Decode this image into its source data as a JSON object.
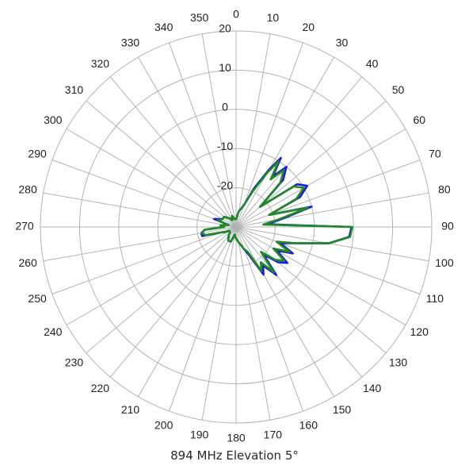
{
  "chart_data": {
    "type": "polar-line",
    "title": "894 MHz Elevation 5°",
    "angle_direction": "clockwise",
    "angle_zero": "top",
    "angle_ticks": [
      0,
      10,
      20,
      30,
      40,
      50,
      60,
      70,
      80,
      90,
      100,
      110,
      120,
      130,
      140,
      150,
      160,
      170,
      180,
      190,
      200,
      210,
      220,
      230,
      240,
      250,
      260,
      270,
      280,
      290,
      300,
      310,
      320,
      330,
      340,
      350
    ],
    "radial_range": [
      -30,
      20
    ],
    "radial_ticks": [
      20,
      10,
      0,
      -10,
      -20
    ],
    "radial_label_angle": 0,
    "grid": true,
    "series": [
      {
        "color": "#1a1ae6",
        "angles": [
          0,
          10,
          20,
          25,
          30,
          33,
          36,
          40,
          45,
          50,
          55,
          60,
          65,
          70,
          75,
          80,
          85,
          90,
          95,
          100,
          105,
          110,
          115,
          120,
          125,
          130,
          135,
          140,
          145,
          150,
          155,
          160,
          170,
          180,
          190,
          200,
          210,
          220,
          230,
          240,
          245,
          250,
          255,
          260,
          265,
          270,
          275,
          280,
          285,
          290,
          300,
          310,
          320,
          330,
          340,
          350
        ],
        "values": [
          -28,
          -26,
          -24,
          -19,
          -13,
          -9,
          -14,
          -10,
          -13,
          -22,
          -11,
          -9,
          -12,
          -21,
          -10,
          -18,
          -22,
          -0.5,
          -1,
          -6,
          -14,
          -18,
          -14,
          -18,
          -14,
          -16,
          -20,
          -14,
          -18,
          -16,
          -22,
          -24,
          -26,
          -27,
          -28,
          -26,
          -26,
          -27,
          -28,
          -28,
          -27,
          -26,
          -21,
          -21,
          -22,
          -27,
          -26,
          -27,
          -28,
          -24,
          -26,
          -26,
          -27,
          -28,
          -27,
          -28
        ]
      },
      {
        "color": "#1f8a1f",
        "angles": [
          0,
          10,
          20,
          25,
          30,
          33,
          36,
          40,
          45,
          50,
          55,
          60,
          65,
          70,
          75,
          80,
          85,
          90,
          95,
          100,
          105,
          110,
          115,
          120,
          125,
          130,
          135,
          140,
          145,
          150,
          155,
          160,
          170,
          180,
          190,
          200,
          210,
          220,
          230,
          240,
          245,
          250,
          255,
          260,
          265,
          270,
          275,
          280,
          285,
          290,
          300,
          310,
          320,
          330,
          340,
          350
        ],
        "values": [
          -28,
          -26,
          -24,
          -20,
          -14,
          -10,
          -15,
          -11,
          -14,
          -22,
          -12,
          -10,
          -13,
          -21,
          -11,
          -19,
          -23,
          -0.3,
          -0.8,
          -6,
          -14,
          -19,
          -15,
          -19,
          -15,
          -17,
          -21,
          -15,
          -19,
          -17,
          -23,
          -24,
          -26,
          -27,
          -28,
          -26,
          -26,
          -27,
          -28,
          -28,
          -27,
          -26,
          -22,
          -21,
          -22,
          -27,
          -26,
          -27,
          -28,
          -25,
          -26,
          -26,
          -27,
          -28,
          -27,
          -28
        ]
      }
    ]
  }
}
